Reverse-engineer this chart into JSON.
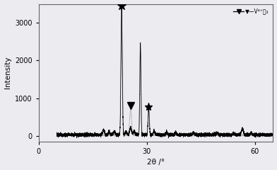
{
  "xlabel": "2θ /°",
  "ylabel": "Intensity",
  "xlim": [
    0,
    65
  ],
  "ylim": [
    -150,
    3500
  ],
  "yticks": [
    0,
    1000,
    2000,
    3000
  ],
  "xticks": [
    0,
    30,
    60
  ],
  "background_color": "#ebebf0",
  "line_color": "#000000",
  "gray_line_color": "#aaaaaa",
  "legend_label": "▼—V⁴⁺相₂",
  "main_peak_x": 23.0,
  "main_peak_y": 3350,
  "second_peak_x": 28.2,
  "second_peak_y": 2430,
  "triangle_x": 25.5,
  "triangle_y": 720,
  "star2_x": 30.5,
  "star2_y": 680
}
